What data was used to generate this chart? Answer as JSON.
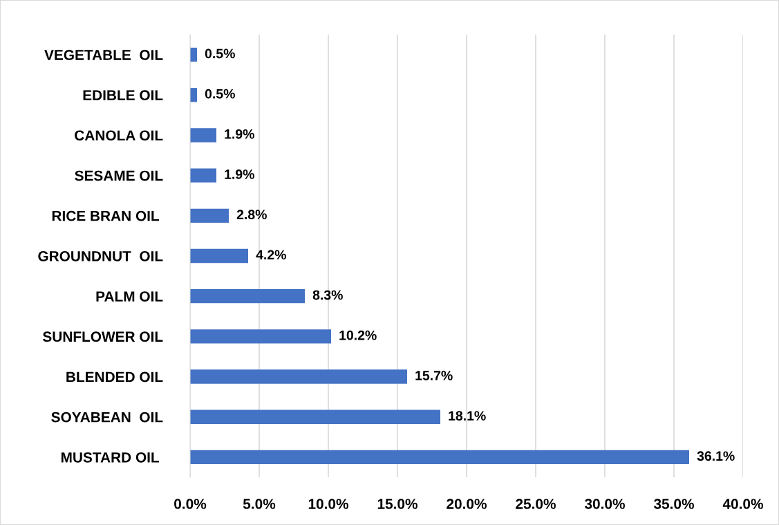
{
  "chart_data": {
    "type": "bar",
    "orientation": "horizontal",
    "categories": [
      "VEGETABLE  OIL",
      "EDIBLE OIL",
      "CANOLA OIL",
      "SESAME OIL",
      "RICE BRAN OIL ",
      "GROUNDNUT  OIL",
      "PALM OIL",
      "SUNFLOWER OIL",
      "BLENDED OIL",
      "SOYABEAN  OIL",
      "MUSTARD OIL "
    ],
    "values": [
      0.5,
      0.5,
      1.9,
      1.9,
      2.8,
      4.2,
      8.3,
      10.2,
      15.7,
      18.1,
      36.1
    ],
    "value_labels": [
      "0.5%",
      "0.5%",
      "1.9%",
      "1.9%",
      "2.8%",
      "4.2%",
      "8.3%",
      "10.2%",
      "15.7%",
      "18.1%",
      "36.1%"
    ],
    "color": "#4472c4",
    "xlim": [
      0,
      40
    ],
    "xticks": [
      {
        "value": 0,
        "label": "0.0%"
      },
      {
        "value": 5,
        "label": "5.0%"
      },
      {
        "value": 10,
        "label": "10.0%"
      },
      {
        "value": 15,
        "label": "15.0%"
      },
      {
        "value": 20,
        "label": "20.0%"
      },
      {
        "value": 25,
        "label": "25.0%"
      },
      {
        "value": 30,
        "label": "30.0%"
      },
      {
        "value": 35,
        "label": "35.0%"
      },
      {
        "value": 40,
        "label": "40.0%"
      }
    ],
    "grid": "x",
    "legend": false
  }
}
